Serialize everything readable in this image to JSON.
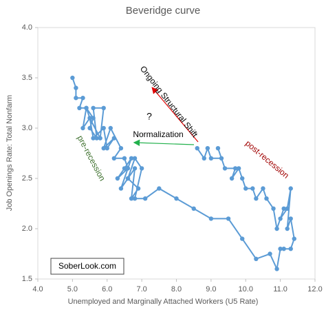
{
  "chart_data": {
    "type": "line",
    "title": "Beveridge curve",
    "x_label": "Unemployed and Marginally Attached Workers (U5 Rate)",
    "y_label": "Job Openings Rate: Total Nonfarm",
    "color": "#5b9bd5",
    "x": [
      5.0,
      5.1,
      5.1,
      5.3,
      5.2,
      5.4,
      5.5,
      5.3,
      5.4,
      5.6,
      5.5,
      5.7,
      5.6,
      5.9,
      5.8,
      5.5,
      5.6,
      5.9,
      6.0,
      6.2,
      5.9,
      6.1,
      6.4,
      6.2,
      6.5,
      6.6,
      6.3,
      6.5,
      6.7,
      6.4,
      6.6,
      6.8,
      6.7,
      6.9,
      6.6,
      6.8,
      7.0,
      6.8,
      7.1,
      7.5,
      8.0,
      8.5,
      9.0,
      9.5,
      9.9,
      10.3,
      10.7,
      10.9,
      11.0,
      11.1,
      11.3,
      11.4,
      11.3,
      11.2,
      11.3,
      11.2,
      11.0,
      11.1,
      10.9,
      10.8,
      10.6,
      10.5,
      10.3,
      10.2,
      10.0,
      9.9,
      9.8,
      9.6,
      9.7,
      9.4,
      9.2,
      9.3,
      9.0,
      8.9,
      8.8,
      8.6
    ],
    "values": [
      3.5,
      3.4,
      3.3,
      3.3,
      3.2,
      3.2,
      3.1,
      3.0,
      3.2,
      3.1,
      3.0,
      2.9,
      3.2,
      3.2,
      2.9,
      3.1,
      2.9,
      3.0,
      2.8,
      2.9,
      2.8,
      3.0,
      2.8,
      2.7,
      2.7,
      2.6,
      2.5,
      2.6,
      2.7,
      2.4,
      2.5,
      2.6,
      2.3,
      2.4,
      2.5,
      2.7,
      2.6,
      2.3,
      2.3,
      2.4,
      2.3,
      2.2,
      2.1,
      2.1,
      1.9,
      1.7,
      1.75,
      1.6,
      1.8,
      1.8,
      1.8,
      1.9,
      2.1,
      2.0,
      2.4,
      2.2,
      2.1,
      2.2,
      2.0,
      2.2,
      2.3,
      2.4,
      2.3,
      2.4,
      2.4,
      2.5,
      2.6,
      2.5,
      2.6,
      2.6,
      2.8,
      2.7,
      2.7,
      2.8,
      2.7,
      2.8
    ],
    "xlim": [
      4,
      12
    ],
    "xticks": [
      {
        "value": 4,
        "label": "4.0"
      },
      {
        "value": 5,
        "label": "5.0"
      },
      {
        "value": 6,
        "label": "6.0"
      },
      {
        "value": 7,
        "label": "7.0"
      },
      {
        "value": 8,
        "label": "8.0"
      },
      {
        "value": 9,
        "label": "9.0"
      },
      {
        "value": 10,
        "label": "10.0"
      },
      {
        "value": 11,
        "label": "11.0"
      },
      {
        "value": 12,
        "label": "12.0"
      }
    ],
    "ylim": [
      1.5,
      4
    ],
    "yticks": [
      1.5,
      {
        "value": 2,
        "label": "2.0"
      },
      2.5,
      {
        "value": 3,
        "label": "3.0"
      },
      3.5,
      {
        "value": 4,
        "label": "4.0"
      }
    ],
    "grid": false,
    "annotations": [
      "Ongoing Structural Shift",
      "Normalization",
      "?",
      "pre-recession",
      "post-recession",
      "SoberLook.com"
    ]
  }
}
